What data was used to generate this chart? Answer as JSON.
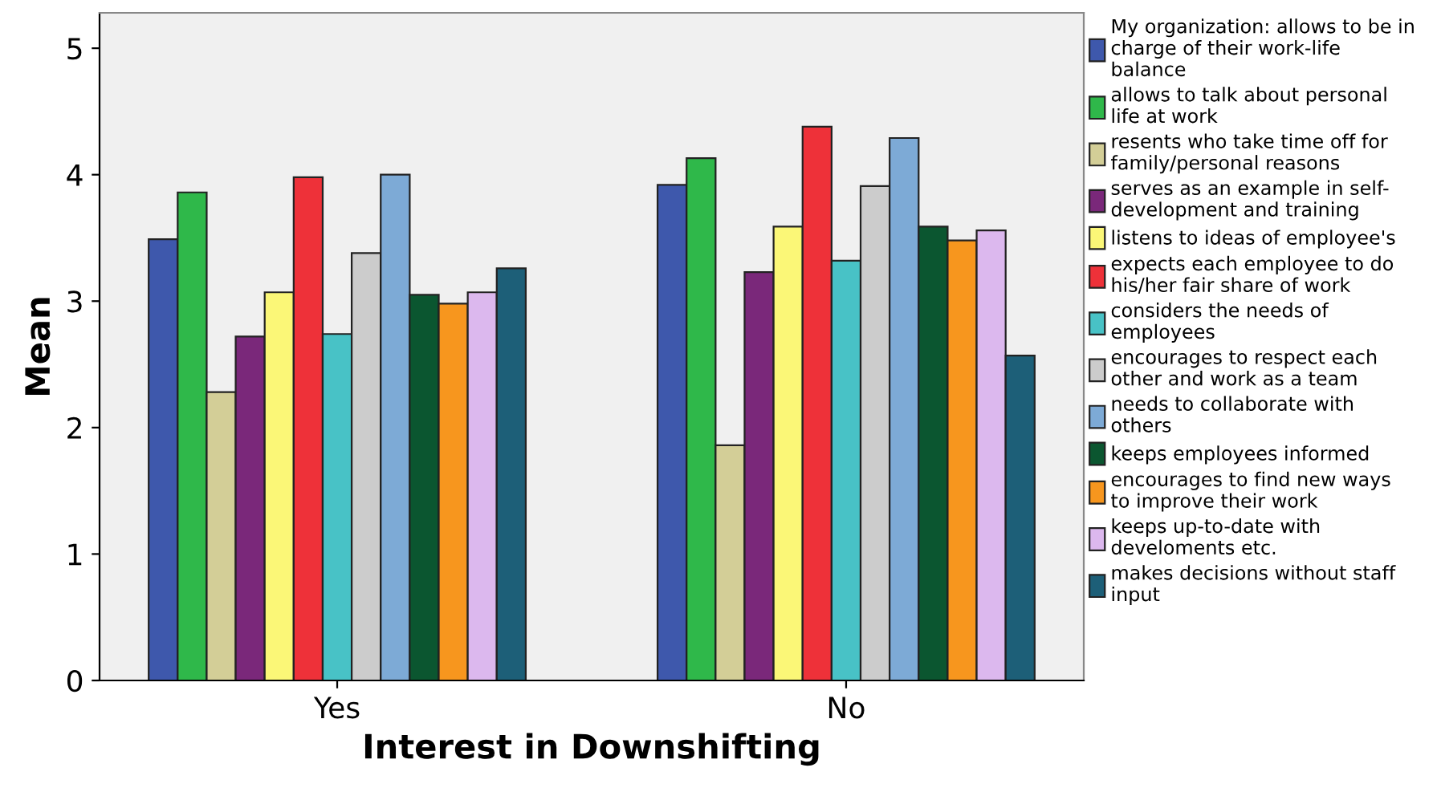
{
  "chart_data": {
    "type": "bar",
    "xlabel": "Interest in Downshifting",
    "ylabel": "Mean",
    "categories": [
      "Yes",
      "No"
    ],
    "series": [
      {
        "name": "My organization: allows to be in\ncharge of their work-life\nbalance",
        "color": "#3e58ac",
        "values": [
          3.49,
          3.92
        ]
      },
      {
        "name": "allows to talk about personal\nlife at work",
        "color": "#2fb84a",
        "values": [
          3.86,
          4.13
        ]
      },
      {
        "name": "resents who take time off for\nfamily/personal reasons",
        "color": "#d3ce97",
        "values": [
          2.28,
          1.86
        ]
      },
      {
        "name": "serves as an example in self-\ndevelopment and training",
        "color": "#7a287a",
        "values": [
          2.72,
          3.23
        ]
      },
      {
        "name": "listens to ideas of employee's",
        "color": "#fbf777",
        "values": [
          3.07,
          3.59
        ]
      },
      {
        "name": "expects each employee to do\nhis/her fair share of work",
        "color": "#ee3139",
        "values": [
          3.98,
          4.38
        ]
      },
      {
        "name": "considers the needs of\nemployees",
        "color": "#48c2c6",
        "values": [
          2.74,
          3.32
        ]
      },
      {
        "name": "encourages to respect each\nother and work as a team",
        "color": "#cccccc",
        "values": [
          3.38,
          3.91
        ]
      },
      {
        "name": "needs to collaborate with\nothers",
        "color": "#7daad6",
        "values": [
          4.0,
          4.29
        ]
      },
      {
        "name": "keeps employees informed",
        "color": "#0b5630",
        "values": [
          3.05,
          3.59
        ]
      },
      {
        "name": "encourages to find new ways\nto improve their work",
        "color": "#f7961e",
        "values": [
          2.98,
          3.48
        ]
      },
      {
        "name": "keeps up-to-date with\ndeveloments etc.",
        "color": "#dcb8ee",
        "values": [
          3.07,
          3.56
        ]
      },
      {
        "name": "makes decisions without staff\ninput",
        "color": "#1d5f78",
        "values": [
          3.26,
          2.57
        ]
      }
    ],
    "ylim": [
      0,
      5.28
    ],
    "yticks": [
      0,
      1,
      2,
      3,
      4,
      5
    ],
    "grid": false,
    "legend": "right"
  }
}
